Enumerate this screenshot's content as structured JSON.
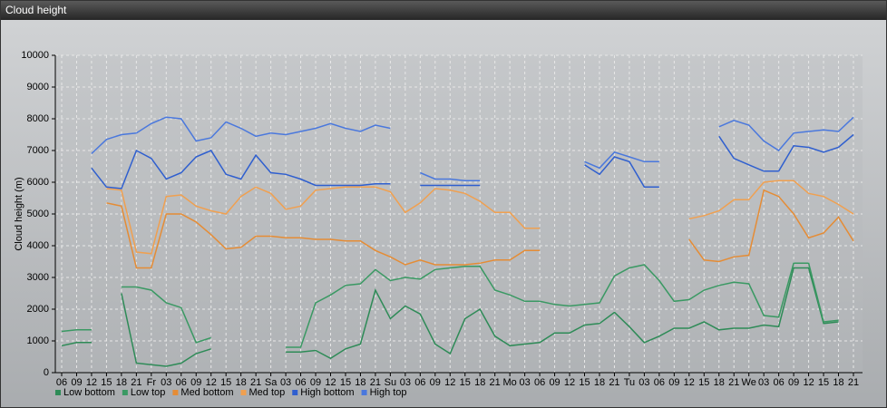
{
  "chart_data": {
    "type": "line",
    "title": "Cloud height",
    "y_label": "Cloud height (m)",
    "categories": [
      "06",
      "09",
      "12",
      "15",
      "18",
      "21",
      "Fr",
      "03",
      "06",
      "09",
      "12",
      "15",
      "18",
      "21",
      "Sa",
      "03",
      "06",
      "09",
      "12",
      "15",
      "18",
      "21",
      "Su",
      "03",
      "06",
      "09",
      "12",
      "15",
      "18",
      "21",
      "Mo",
      "03",
      "06",
      "09",
      "12",
      "15",
      "18",
      "21",
      "Tu",
      "03",
      "06",
      "09",
      "12",
      "15",
      "18",
      "21",
      "We",
      "03",
      "06",
      "09",
      "12",
      "15",
      "18",
      "21"
    ],
    "series": [
      {
        "name": "Low bottom",
        "color": "#2e8b57",
        "values": [
          850,
          950,
          950,
          null,
          2500,
          300,
          250,
          200,
          300,
          600,
          750,
          null,
          null,
          null,
          null,
          650,
          650,
          700,
          450,
          750,
          900,
          2600,
          1700,
          2100,
          1850,
          900,
          600,
          1700,
          2000,
          1150,
          850,
          900,
          950,
          1250,
          1250,
          1500,
          1550,
          1900,
          1450,
          950,
          1150,
          1400,
          1400,
          1600,
          1350,
          1400,
          1400,
          1500,
          1450,
          3300,
          3300,
          1550,
          1600,
          null
        ]
      },
      {
        "name": "Low top",
        "color": "#3a9963",
        "values": [
          1300,
          1350,
          1350,
          null,
          2700,
          2700,
          2600,
          2200,
          2050,
          950,
          1100,
          null,
          null,
          null,
          null,
          800,
          800,
          2200,
          2450,
          2750,
          2800,
          3250,
          2900,
          3000,
          2950,
          3250,
          3300,
          3350,
          3350,
          2600,
          2450,
          2250,
          2250,
          2150,
          2100,
          2150,
          2200,
          3050,
          3300,
          3400,
          2900,
          2250,
          2300,
          2600,
          2750,
          2850,
          2800,
          1800,
          1750,
          3450,
          3450,
          1600,
          1650,
          null
        ]
      },
      {
        "name": "Med bottom",
        "color": "#e58c35",
        "values": [
          null,
          null,
          null,
          5350,
          5250,
          3300,
          3300,
          5000,
          5000,
          4750,
          4350,
          3900,
          3950,
          4300,
          4300,
          4250,
          4250,
          4200,
          4200,
          4150,
          4150,
          3850,
          3650,
          3400,
          3550,
          3400,
          3400,
          3400,
          3450,
          3550,
          3550,
          3850,
          3850,
          null,
          null,
          null,
          null,
          null,
          null,
          null,
          null,
          null,
          4200,
          3550,
          3500,
          3650,
          3700,
          5750,
          5550,
          5000,
          4250,
          4400,
          4900,
          4150
        ]
      },
      {
        "name": "Med top",
        "color": "#f0a050",
        "values": [
          null,
          null,
          null,
          5800,
          5750,
          3800,
          3750,
          5550,
          5600,
          5250,
          5100,
          5000,
          5550,
          5850,
          5650,
          5150,
          5250,
          5750,
          5800,
          5850,
          5850,
          5850,
          5700,
          5050,
          5350,
          5800,
          5750,
          5650,
          5400,
          5050,
          5050,
          4550,
          4550,
          null,
          null,
          null,
          null,
          null,
          null,
          null,
          null,
          null,
          4850,
          4950,
          5100,
          5450,
          5450,
          6000,
          6050,
          6050,
          5650,
          5550,
          5300,
          5000
        ]
      },
      {
        "name": "High bottom",
        "color": "#2f5fcf",
        "values": [
          null,
          null,
          6450,
          5850,
          5800,
          7000,
          6750,
          6100,
          6300,
          6800,
          7000,
          6250,
          6100,
          6850,
          6300,
          6250,
          6100,
          5900,
          5900,
          5900,
          5900,
          5950,
          5950,
          null,
          5900,
          5900,
          5900,
          5900,
          5900,
          null,
          null,
          null,
          null,
          null,
          null,
          6550,
          6250,
          6800,
          6650,
          5850,
          5850,
          null,
          null,
          null,
          7450,
          6750,
          6550,
          6350,
          6350,
          7150,
          7100,
          6950,
          7100,
          7500
        ]
      },
      {
        "name": "High top",
        "color": "#4a78dd",
        "values": [
          null,
          null,
          6900,
          7350,
          7500,
          7550,
          7850,
          8050,
          8000,
          7300,
          7400,
          7900,
          7700,
          7450,
          7550,
          7500,
          7600,
          7700,
          7850,
          7700,
          7600,
          7800,
          7700,
          null,
          6300,
          6100,
          6100,
          6050,
          6050,
          null,
          null,
          null,
          null,
          null,
          null,
          6650,
          6450,
          6950,
          6800,
          6650,
          6650,
          null,
          null,
          null,
          7750,
          7950,
          7800,
          7300,
          7000,
          7550,
          7600,
          7650,
          7600,
          8050
        ]
      }
    ],
    "ylim": [
      0,
      10000
    ],
    "yticks": [
      0,
      1000,
      2000,
      3000,
      4000,
      5000,
      6000,
      7000,
      8000,
      9000,
      10000
    ],
    "grid": true,
    "legend": "bottom-left"
  }
}
